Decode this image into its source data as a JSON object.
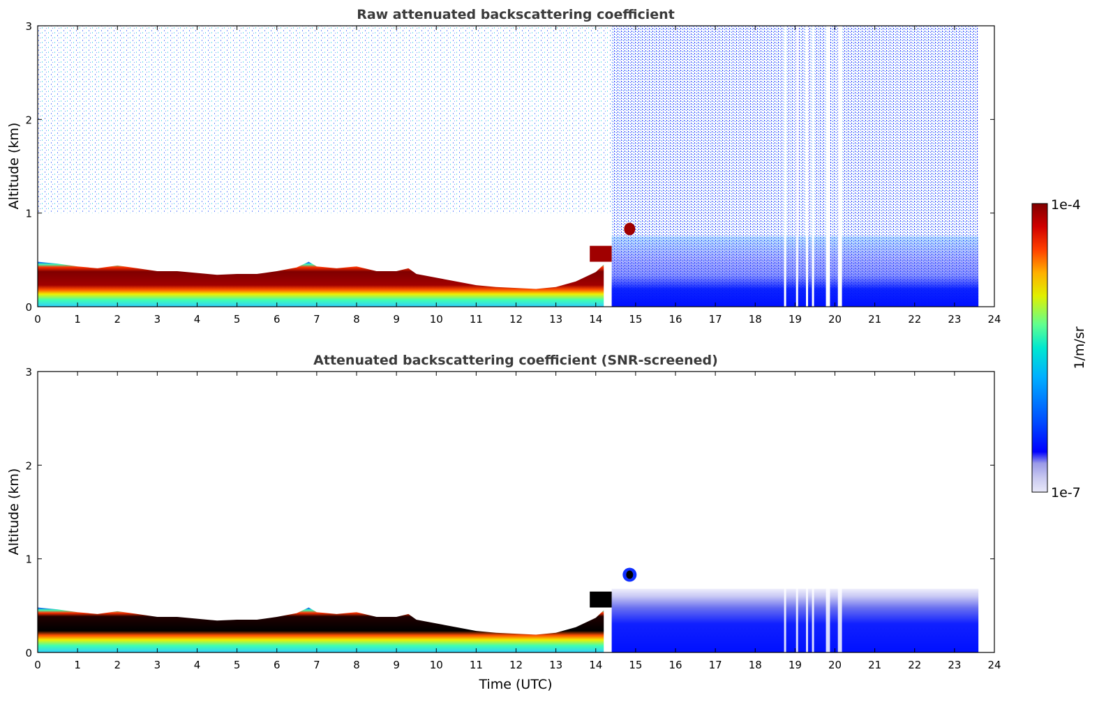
{
  "chart_data": [
    {
      "type": "heatmap",
      "title": "Raw attenuated backscattering coefficient",
      "xlabel": "",
      "ylabel": "Altitude (km)",
      "xlim": [
        0,
        24
      ],
      "ylim": [
        0,
        3
      ],
      "x_ticks": [
        "0",
        "1",
        "2",
        "3",
        "4",
        "5",
        "6",
        "7",
        "8",
        "9",
        "10",
        "11",
        "12",
        "13",
        "14",
        "15",
        "16",
        "17",
        "18",
        "19",
        "20",
        "21",
        "22",
        "23",
        "24"
      ],
      "y_ticks": [
        "0",
        "1",
        "2",
        "3"
      ],
      "data_end_hour": 23.6,
      "layer_top_km": [
        [
          0,
          0.48
        ],
        [
          0.5,
          0.46
        ],
        [
          1,
          0.43
        ],
        [
          1.5,
          0.41
        ],
        [
          2,
          0.44
        ],
        [
          2.5,
          0.41
        ],
        [
          3,
          0.38
        ],
        [
          3.5,
          0.38
        ],
        [
          4,
          0.36
        ],
        [
          4.5,
          0.34
        ],
        [
          5,
          0.35
        ],
        [
          5.5,
          0.35
        ],
        [
          6,
          0.38
        ],
        [
          6.5,
          0.42
        ],
        [
          6.8,
          0.48
        ],
        [
          7,
          0.43
        ],
        [
          7.5,
          0.41
        ],
        [
          8,
          0.43
        ],
        [
          8.5,
          0.38
        ],
        [
          9,
          0.38
        ],
        [
          9.3,
          0.41
        ],
        [
          9.5,
          0.35
        ],
        [
          10,
          0.31
        ],
        [
          10.5,
          0.27
        ],
        [
          11,
          0.23
        ],
        [
          11.5,
          0.21
        ],
        [
          12,
          0.2
        ],
        [
          12.5,
          0.19
        ],
        [
          13,
          0.21
        ],
        [
          13.5,
          0.27
        ],
        [
          14,
          0.37
        ],
        [
          14.2,
          0.45
        ]
      ],
      "aloft_feature": {
        "x": 14.85,
        "y_km": 0.83
      },
      "noise_region": {
        "x_start": 14.4,
        "x_end": 23.6
      },
      "data_gaps": [
        18.75,
        19.05,
        19.3,
        19.45,
        19.8,
        19.85,
        20.1,
        20.15
      ],
      "colormap": "jet"
    },
    {
      "type": "heatmap",
      "title": "Attenuated backscattering coefficient (SNR-screened)",
      "xlabel": "Time (UTC)",
      "ylabel": "Altitude (km)",
      "xlim": [
        0,
        24
      ],
      "ylim": [
        0,
        3
      ],
      "x_ticks": [
        "0",
        "1",
        "2",
        "3",
        "4",
        "5",
        "6",
        "7",
        "8",
        "9",
        "10",
        "11",
        "12",
        "13",
        "14",
        "15",
        "16",
        "17",
        "18",
        "19",
        "20",
        "21",
        "22",
        "23",
        "24"
      ],
      "y_ticks": [
        "0",
        "1",
        "2",
        "3"
      ],
      "screened_top_km": 0.68,
      "colormap": "jet"
    }
  ],
  "colorbar": {
    "label": "1/m/sr",
    "max_label": "1e-4",
    "min_label": "1e-7",
    "colors": [
      "#e8e8f8",
      "#c8c8f0",
      "#9a9ae8",
      "#0000ff",
      "#0050ff",
      "#00a0ff",
      "#00e0e0",
      "#40ffb0",
      "#a0ff50",
      "#f0f000",
      "#ffa000",
      "#ff4000",
      "#e00000",
      "#800000"
    ]
  }
}
